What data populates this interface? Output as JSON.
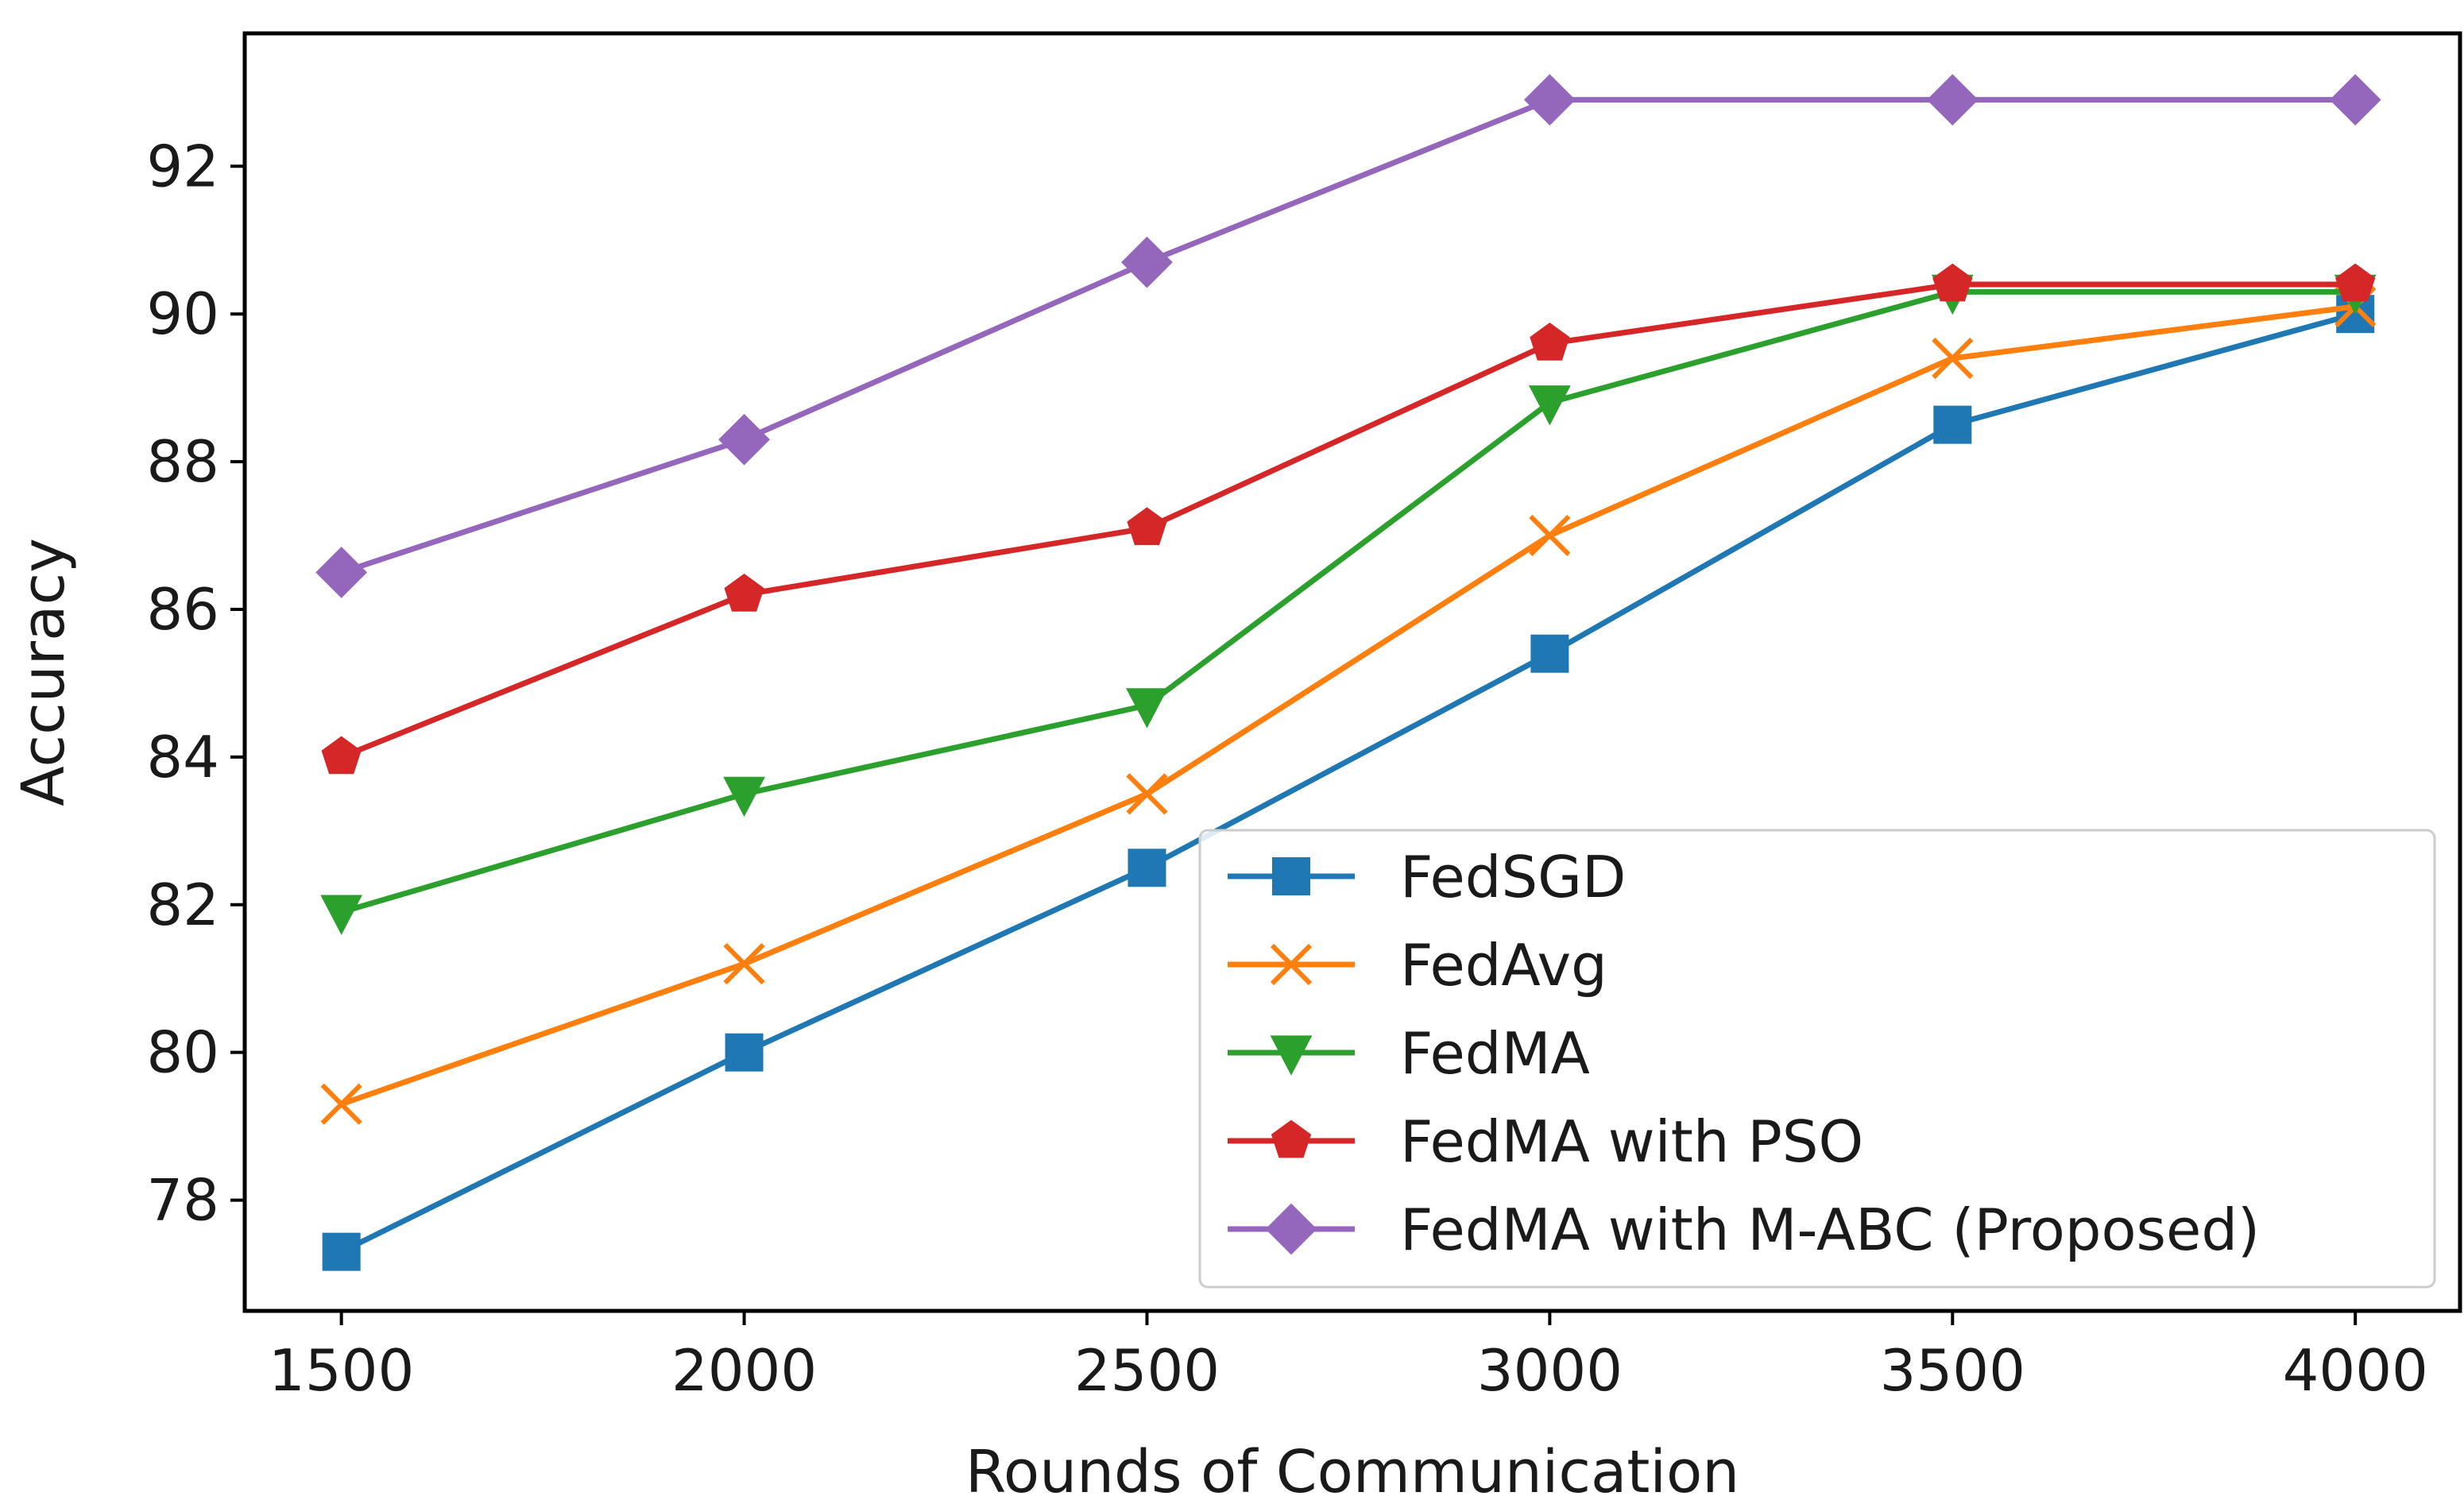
{
  "chart_data": {
    "type": "line",
    "title": "",
    "xlabel": "Rounds of Communication",
    "ylabel": "Accuracy",
    "x": [
      1500,
      2000,
      2500,
      3000,
      3500,
      4000
    ],
    "xlim": [
      1380,
      4130
    ],
    "ylim": [
      76.5,
      93.8
    ],
    "xticks": [
      1500,
      2000,
      2500,
      3000,
      3500,
      4000
    ],
    "yticks": [
      78,
      80,
      82,
      84,
      86,
      88,
      90,
      92
    ],
    "grid": false,
    "legend_position": "lower-right",
    "series": [
      {
        "name": "FedSGD",
        "color": "#1f77b4",
        "marker": "square",
        "values": [
          77.3,
          80.0,
          82.5,
          85.4,
          88.5,
          90.0
        ]
      },
      {
        "name": "FedAvg",
        "color": "#ff7f0e",
        "marker": "x",
        "values": [
          79.3,
          81.2,
          83.5,
          87.0,
          89.4,
          90.1
        ]
      },
      {
        "name": "FedMA",
        "color": "#2ca02c",
        "marker": "triangle-down",
        "values": [
          81.9,
          83.5,
          84.7,
          88.8,
          90.3,
          90.3
        ]
      },
      {
        "name": "FedMA with PSO",
        "color": "#d62728",
        "marker": "pentagon",
        "values": [
          84.0,
          86.2,
          87.1,
          89.6,
          90.4,
          90.4
        ]
      },
      {
        "name": "FedMA with M-ABC (Proposed)",
        "color": "#9467bd",
        "marker": "diamond",
        "values": [
          86.5,
          88.3,
          90.7,
          92.9,
          92.9,
          92.9
        ]
      }
    ]
  }
}
